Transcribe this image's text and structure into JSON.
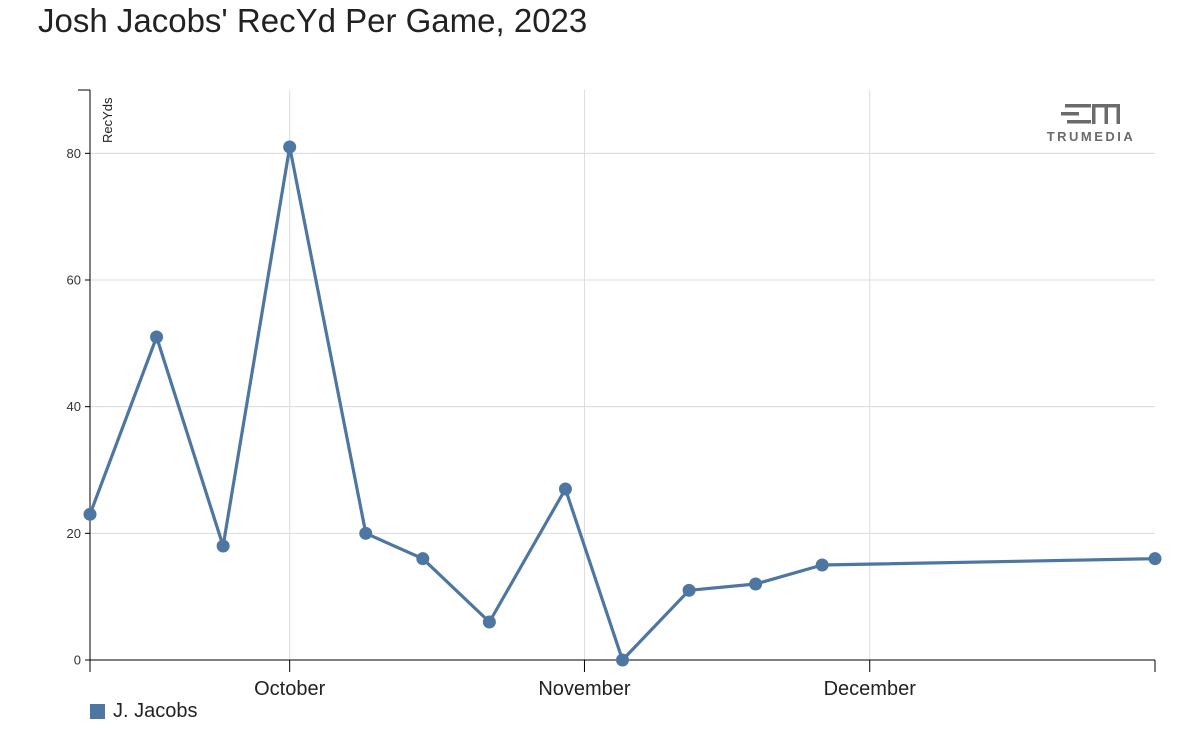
{
  "chart_data": {
    "type": "line",
    "title": "Josh Jacobs' RecYd Per Game, 2023",
    "xlabel": "",
    "ylabel": "RecYds",
    "x_axis_type": "date",
    "xlim": [
      "2023-09-10",
      "2023-12-31"
    ],
    "ylim": [
      0,
      90
    ],
    "y_ticks": [
      0,
      20,
      40,
      60,
      80
    ],
    "x_ticks": [
      {
        "date": "2023-10-01",
        "label": "October"
      },
      {
        "date": "2023-11-01",
        "label": "November"
      },
      {
        "date": "2023-12-01",
        "label": "December"
      }
    ],
    "grid": true,
    "legend_position": "bottom-left",
    "series": [
      {
        "name": "J. Jacobs",
        "color": "#4e76a2",
        "points": [
          {
            "x": "2023-09-10",
            "y": 23
          },
          {
            "x": "2023-09-17",
            "y": 51
          },
          {
            "x": "2023-09-24",
            "y": 18
          },
          {
            "x": "2023-10-01",
            "y": 81
          },
          {
            "x": "2023-10-09",
            "y": 20
          },
          {
            "x": "2023-10-15",
            "y": 16
          },
          {
            "x": "2023-10-22",
            "y": 6
          },
          {
            "x": "2023-10-30",
            "y": 27
          },
          {
            "x": "2023-11-05",
            "y": 0
          },
          {
            "x": "2023-11-12",
            "y": 11
          },
          {
            "x": "2023-11-19",
            "y": 12
          },
          {
            "x": "2023-11-26",
            "y": 15
          },
          {
            "x": "2023-12-31",
            "y": 16
          }
        ]
      }
    ]
  },
  "brand": {
    "name": "TRUMEDIA",
    "logo_icon": "trumedia-logo-icon",
    "color": "#6b6b6b"
  }
}
